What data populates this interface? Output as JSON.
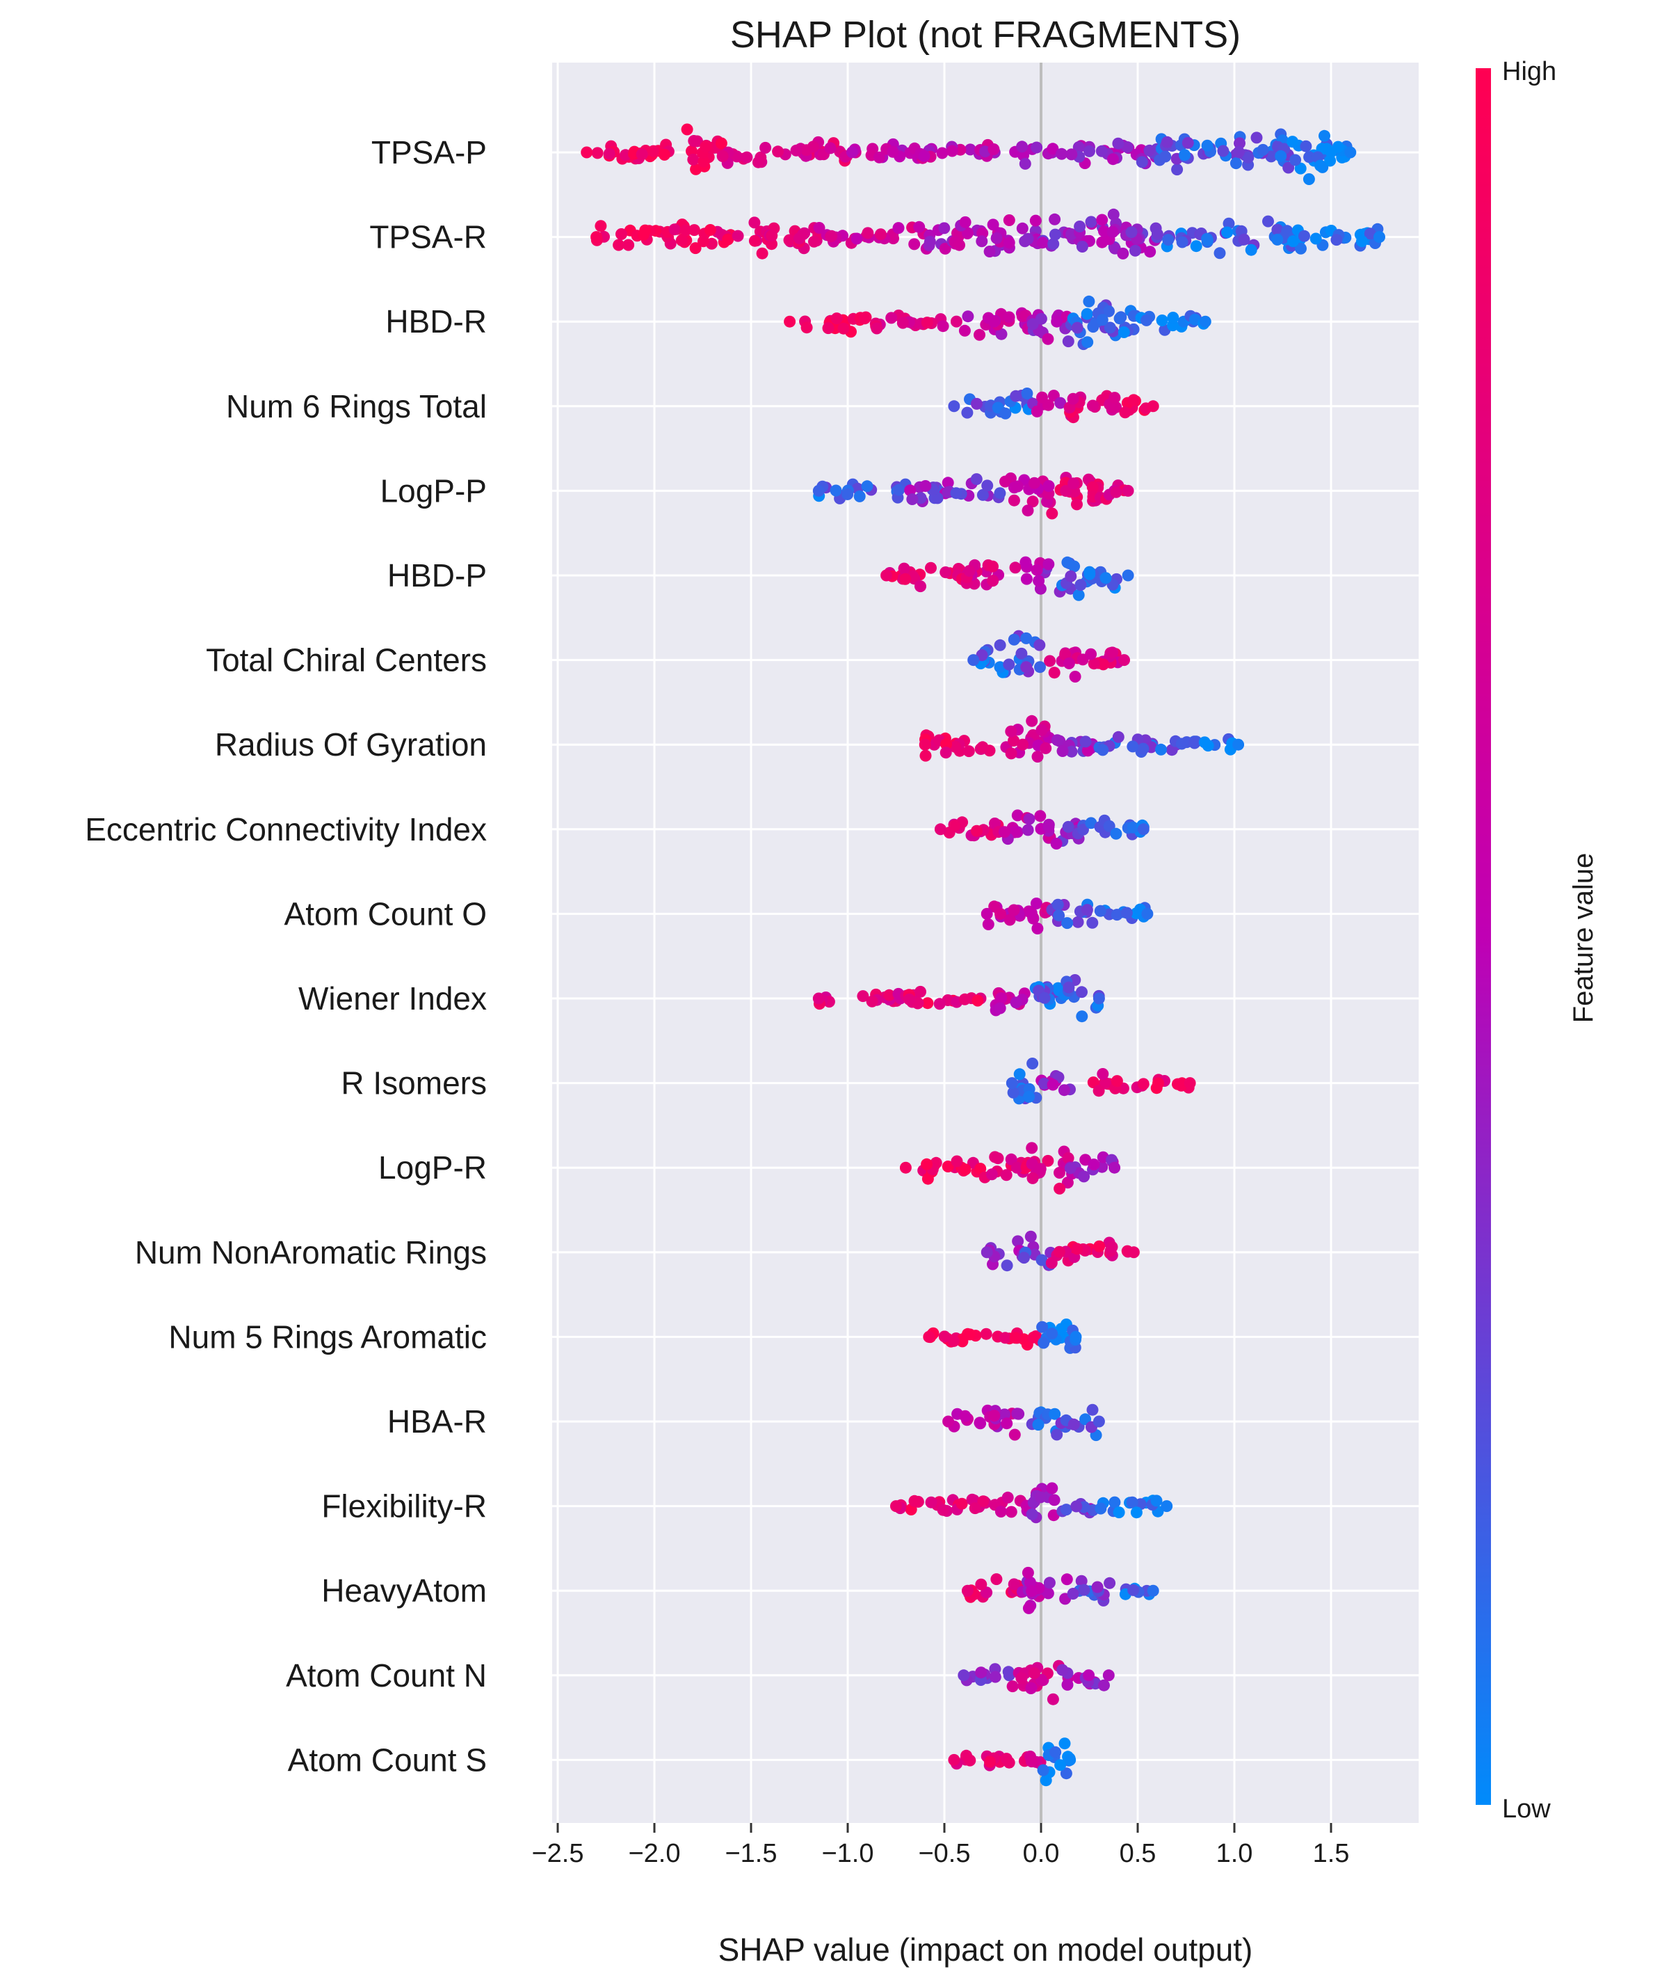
{
  "chart_data": {
    "type": "scatter",
    "subtype": "shap-beeswarm",
    "title": "SHAP Plot (not FRAGMENTS)",
    "xlabel": "SHAP value (impact on model output)",
    "ylabel": "",
    "xlim": [
      -2.6,
      1.95
    ],
    "xticks": [
      -2.5,
      -2.0,
      -1.5,
      -1.0,
      -0.5,
      0.0,
      0.5,
      1.0,
      1.5
    ],
    "xtick_labels": [
      "−2.5",
      "−2.0",
      "−1.5",
      "−1.0",
      "−0.5",
      "0.0",
      "0.5",
      "1.0",
      "1.5"
    ],
    "grid": true,
    "colorbar": {
      "label": "Feature value",
      "high_label": "High",
      "low_label": "Low",
      "high_color": "#ff0052",
      "mid_color": "#c000b4",
      "low_color": "#008bfb"
    },
    "colors": {
      "background": "#eaeaf2",
      "grid": "#ffffff",
      "zero_line": "#bdbdbd"
    },
    "features": [
      {
        "name": "TPSA-P",
        "min": -2.35,
        "max": 1.6,
        "segments": [
          [
            -2.35,
            -1.85,
            0.95,
            0.35
          ],
          [
            -1.85,
            -1.65,
            0.9,
            1.0
          ],
          [
            -1.65,
            -1.0,
            0.75,
            0.4
          ],
          [
            -1.0,
            -0.1,
            0.55,
            0.25
          ],
          [
            -0.1,
            0.6,
            0.4,
            0.5
          ],
          [
            0.6,
            1.3,
            0.2,
            0.75
          ],
          [
            1.3,
            1.6,
            0.05,
            1.0
          ]
        ]
      },
      {
        "name": "TPSA-R",
        "min": -2.3,
        "max": 1.75,
        "segments": [
          [
            -2.3,
            -1.9,
            0.95,
            0.35
          ],
          [
            -1.9,
            -1.6,
            0.9,
            0.7
          ],
          [
            -1.6,
            -1.15,
            0.8,
            0.6
          ],
          [
            -1.15,
            -0.6,
            0.65,
            0.35
          ],
          [
            -0.6,
            0.0,
            0.5,
            0.75
          ],
          [
            0.0,
            0.6,
            0.4,
            0.9
          ],
          [
            0.6,
            1.3,
            0.15,
            0.55
          ],
          [
            1.3,
            1.75,
            0.05,
            0.45
          ]
        ]
      },
      {
        "name": "HBD-R",
        "min": -1.3,
        "max": 0.85,
        "segments": [
          [
            -1.3,
            -0.9,
            0.95,
            0.35
          ],
          [
            -0.9,
            -0.4,
            0.75,
            0.2
          ],
          [
            -0.4,
            -0.05,
            0.55,
            0.55
          ],
          [
            -0.05,
            0.15,
            0.45,
            0.85
          ],
          [
            0.15,
            0.5,
            0.15,
            1.0
          ],
          [
            0.5,
            0.85,
            0.05,
            0.3
          ]
        ]
      },
      {
        "name": "Num 6 Rings Total",
        "min": -0.45,
        "max": 0.58,
        "segments": [
          [
            -0.45,
            -0.2,
            0.2,
            0.35
          ],
          [
            -0.2,
            -0.05,
            0.15,
            0.75
          ],
          [
            -0.05,
            0.1,
            0.5,
            0.4
          ],
          [
            0.1,
            0.4,
            0.8,
            0.55
          ],
          [
            0.4,
            0.58,
            0.9,
            0.3
          ]
        ]
      },
      {
        "name": "LogP-P",
        "min": -1.15,
        "max": 0.45,
        "segments": [
          [
            -1.15,
            -0.7,
            0.15,
            0.25
          ],
          [
            -0.7,
            -0.2,
            0.35,
            0.45
          ],
          [
            -0.2,
            0.05,
            0.6,
            0.7
          ],
          [
            0.05,
            0.3,
            0.8,
            0.9
          ],
          [
            0.3,
            0.45,
            0.75,
            0.4
          ]
        ]
      },
      {
        "name": "HBD-P",
        "min": -0.8,
        "max": 0.45,
        "segments": [
          [
            -0.8,
            -0.4,
            0.85,
            0.35
          ],
          [
            -0.4,
            -0.1,
            0.7,
            0.5
          ],
          [
            -0.1,
            0.1,
            0.45,
            0.6
          ],
          [
            0.1,
            0.25,
            0.2,
            0.85
          ],
          [
            0.25,
            0.45,
            0.1,
            0.45
          ]
        ]
      },
      {
        "name": "Total Chiral Centers",
        "min": -0.35,
        "max": 0.43,
        "segments": [
          [
            -0.35,
            -0.15,
            0.15,
            0.6
          ],
          [
            -0.15,
            0.0,
            0.2,
            1.0
          ],
          [
            0.0,
            0.2,
            0.7,
            0.6
          ],
          [
            0.2,
            0.43,
            0.75,
            0.45
          ]
        ]
      },
      {
        "name": "Radius Of Gyration",
        "min": -0.6,
        "max": 1.02,
        "segments": [
          [
            -0.6,
            -0.2,
            0.9,
            0.45
          ],
          [
            -0.2,
            0.05,
            0.65,
            0.9
          ],
          [
            0.05,
            0.3,
            0.4,
            0.5
          ],
          [
            0.3,
            0.7,
            0.2,
            0.35
          ],
          [
            0.7,
            1.02,
            0.05,
            0.15
          ]
        ]
      },
      {
        "name": "Eccentric Connectivity Index",
        "min": -0.52,
        "max": 0.53,
        "segments": [
          [
            -0.52,
            -0.2,
            0.8,
            0.4
          ],
          [
            -0.2,
            0.05,
            0.55,
            0.65
          ],
          [
            0.05,
            0.2,
            0.4,
            0.8
          ],
          [
            0.2,
            0.53,
            0.15,
            0.4
          ]
        ]
      },
      {
        "name": "Atom Count O",
        "min": -0.28,
        "max": 0.55,
        "segments": [
          [
            -0.28,
            -0.05,
            0.55,
            0.5
          ],
          [
            -0.05,
            0.05,
            0.6,
            0.9
          ],
          [
            0.05,
            0.3,
            0.2,
            0.55
          ],
          [
            0.3,
            0.55,
            0.1,
            0.3
          ]
        ]
      },
      {
        "name": "Wiener Index",
        "min": -1.15,
        "max": 0.3,
        "segments": [
          [
            -1.15,
            -0.7,
            0.75,
            0.2
          ],
          [
            -0.7,
            -0.3,
            0.85,
            0.35
          ],
          [
            -0.3,
            -0.05,
            0.6,
            0.45
          ],
          [
            -0.05,
            0.3,
            0.15,
            0.85
          ]
        ]
      },
      {
        "name": "R Isomers",
        "min": -0.15,
        "max": 0.77,
        "segments": [
          [
            -0.15,
            0.0,
            0.15,
            0.9
          ],
          [
            0.0,
            0.25,
            0.45,
            0.3
          ],
          [
            0.25,
            0.55,
            0.8,
            0.3
          ],
          [
            0.55,
            0.77,
            0.9,
            0.2
          ]
        ]
      },
      {
        "name": "LogP-R",
        "min": -0.7,
        "max": 0.38,
        "segments": [
          [
            -0.7,
            -0.3,
            0.92,
            0.3
          ],
          [
            -0.3,
            -0.05,
            0.8,
            0.55
          ],
          [
            -0.05,
            0.15,
            0.75,
            0.85
          ],
          [
            0.15,
            0.38,
            0.45,
            0.5
          ]
        ]
      },
      {
        "name": "Num NonAromatic Rings",
        "min": -0.28,
        "max": 0.48,
        "segments": [
          [
            -0.28,
            -0.1,
            0.35,
            0.45
          ],
          [
            -0.1,
            0.05,
            0.3,
            0.8
          ],
          [
            0.05,
            0.3,
            0.85,
            0.4
          ],
          [
            0.3,
            0.48,
            0.85,
            0.35
          ]
        ]
      },
      {
        "name": "Num 5 Rings Aromatic",
        "min": -0.58,
        "max": 0.18,
        "segments": [
          [
            -0.58,
            -0.2,
            0.93,
            0.25
          ],
          [
            -0.2,
            0.0,
            0.9,
            0.4
          ],
          [
            0.0,
            0.18,
            0.05,
            0.9
          ]
        ]
      },
      {
        "name": "HBA-R",
        "min": -0.48,
        "max": 0.3,
        "segments": [
          [
            -0.48,
            -0.3,
            0.6,
            0.25
          ],
          [
            -0.3,
            -0.05,
            0.55,
            0.5
          ],
          [
            -0.05,
            0.1,
            0.2,
            0.75
          ],
          [
            0.1,
            0.3,
            0.2,
            0.45
          ]
        ]
      },
      {
        "name": "Flexibility-R",
        "min": -0.75,
        "max": 0.65,
        "segments": [
          [
            -0.75,
            -0.4,
            0.85,
            0.25
          ],
          [
            -0.4,
            -0.1,
            0.75,
            0.3
          ],
          [
            -0.1,
            0.1,
            0.45,
            0.8
          ],
          [
            0.1,
            0.3,
            0.3,
            0.35
          ],
          [
            0.3,
            0.65,
            0.05,
            0.3
          ]
        ]
      },
      {
        "name": "HeavyAtom",
        "min": -0.38,
        "max": 0.58,
        "segments": [
          [
            -0.38,
            -0.1,
            0.8,
            0.4
          ],
          [
            -0.1,
            0.15,
            0.5,
            0.8
          ],
          [
            0.15,
            0.4,
            0.25,
            0.4
          ],
          [
            0.4,
            0.58,
            0.1,
            0.2
          ]
        ]
      },
      {
        "name": "Atom Count N",
        "min": -0.4,
        "max": 0.35,
        "segments": [
          [
            -0.4,
            -0.15,
            0.3,
            0.35
          ],
          [
            -0.15,
            0.1,
            0.7,
            0.8
          ],
          [
            0.1,
            0.35,
            0.45,
            0.4
          ]
        ]
      },
      {
        "name": "Atom Count S",
        "min": -0.45,
        "max": 0.15,
        "segments": [
          [
            -0.45,
            -0.2,
            0.85,
            0.3
          ],
          [
            -0.2,
            0.0,
            0.75,
            0.3
          ],
          [
            0.0,
            0.15,
            0.02,
            1.0
          ]
        ]
      }
    ]
  }
}
